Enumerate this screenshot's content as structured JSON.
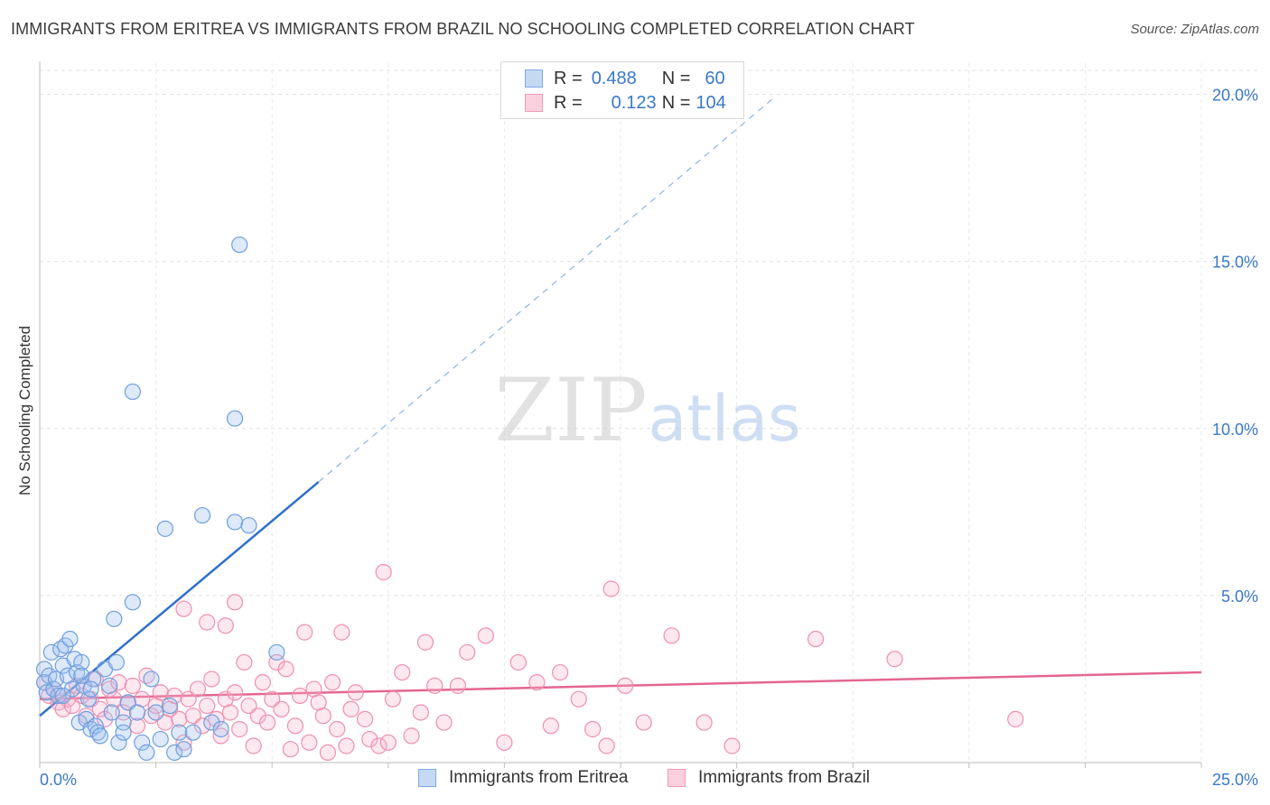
{
  "title": "IMMIGRANTS FROM ERITREA VS IMMIGRANTS FROM BRAZIL NO SCHOOLING COMPLETED CORRELATION CHART",
  "source": "Source: ZipAtlas.com",
  "watermark": {
    "zip": "ZIP",
    "atlas": "atlas"
  },
  "legend": {
    "rows": [
      {
        "r_label": "R =",
        "r_value": "0.488",
        "n_label": "N =",
        "n_value": "60",
        "color": "#7fa8e0",
        "fill": "#c5d9f3"
      },
      {
        "r_label": "R =",
        "r_value": "0.123",
        "n_label": "N =",
        "n_value": "104",
        "color": "#f29ab8",
        "fill": "#fad0de"
      }
    ]
  },
  "bottom_legend": {
    "eritrea": "Immigrants from Eritrea",
    "brazil": "Immigrants from Brazil"
  },
  "colors": {
    "blue": "#6f9fdd",
    "blue_line": "#2f6fcc",
    "pink": "#ee8fb0",
    "pink_line": "#e4668f",
    "tick_text": "#3a78c9",
    "grid": "#e0e0e0"
  },
  "chart_data": {
    "type": "scatter",
    "xlabel": "",
    "ylabel": "No Schooling Completed",
    "xlim": [
      0,
      25
    ],
    "ylim": [
      0,
      20.8
    ],
    "x_tick_labels": [
      {
        "value": 0,
        "label": "0.0%"
      },
      {
        "value": 25,
        "label": "25.0%"
      }
    ],
    "y_tick_labels": [
      {
        "value": 5,
        "label": "5.0%"
      },
      {
        "value": 10,
        "label": "10.0%"
      },
      {
        "value": 15,
        "label": "15.0%"
      },
      {
        "value": 20,
        "label": "20.0%"
      }
    ],
    "series": [
      {
        "name": "Immigrants from Eritrea",
        "R": 0.488,
        "N": 60,
        "trend": {
          "x0": 0,
          "y0": 1.4,
          "x_solid_end": 6.0,
          "y_solid_end": 8.4,
          "x1": 15.8,
          "y1": 19.9
        },
        "points": [
          [
            0.1,
            2.8
          ],
          [
            0.1,
            2.4
          ],
          [
            0.15,
            2.1
          ],
          [
            0.2,
            2.6
          ],
          [
            0.25,
            3.3
          ],
          [
            0.3,
            2.2
          ],
          [
            0.35,
            2.5
          ],
          [
            0.4,
            2.0
          ],
          [
            0.45,
            3.4
          ],
          [
            0.5,
            2.9
          ],
          [
            0.55,
            3.5
          ],
          [
            0.6,
            2.6
          ],
          [
            0.65,
            3.7
          ],
          [
            0.7,
            2.2
          ],
          [
            0.75,
            3.1
          ],
          [
            0.8,
            2.7
          ],
          [
            0.85,
            1.2
          ],
          [
            0.9,
            3.0
          ],
          [
            0.95,
            2.3
          ],
          [
            1.0,
            1.3
          ],
          [
            1.05,
            1.9
          ],
          [
            1.1,
            1.0
          ],
          [
            1.15,
            2.5
          ],
          [
            1.2,
            1.1
          ],
          [
            1.25,
            0.9
          ],
          [
            1.3,
            0.8
          ],
          [
            1.4,
            2.8
          ],
          [
            1.5,
            2.3
          ],
          [
            1.55,
            1.5
          ],
          [
            1.6,
            4.3
          ],
          [
            1.65,
            3.0
          ],
          [
            1.7,
            0.6
          ],
          [
            1.8,
            1.2
          ],
          [
            1.9,
            1.8
          ],
          [
            2.0,
            4.8
          ],
          [
            2.1,
            1.5
          ],
          [
            2.2,
            0.6
          ],
          [
            2.3,
            0.3
          ],
          [
            2.4,
            2.5
          ],
          [
            2.5,
            1.5
          ],
          [
            2.6,
            0.7
          ],
          [
            2.7,
            7.0
          ],
          [
            2.8,
            1.7
          ],
          [
            2.9,
            0.3
          ],
          [
            3.0,
            0.9
          ],
          [
            3.1,
            0.4
          ],
          [
            3.3,
            0.9
          ],
          [
            3.5,
            7.4
          ],
          [
            3.7,
            1.2
          ],
          [
            3.9,
            1.0
          ],
          [
            4.2,
            7.2
          ],
          [
            4.5,
            7.1
          ],
          [
            2.0,
            11.1
          ],
          [
            4.2,
            10.3
          ],
          [
            4.3,
            15.5
          ],
          [
            5.1,
            3.3
          ],
          [
            0.9,
            2.6
          ],
          [
            1.1,
            2.2
          ],
          [
            0.5,
            2.0
          ],
          [
            1.8,
            0.9
          ]
        ]
      },
      {
        "name": "Immigrants from Brazil",
        "R": 0.123,
        "N": 104,
        "trend": {
          "x0": 0,
          "y0": 1.9,
          "x1": 25,
          "y1": 2.7
        },
        "points": [
          [
            0.1,
            2.4
          ],
          [
            0.2,
            2.0
          ],
          [
            0.3,
            2.2
          ],
          [
            0.4,
            1.8
          ],
          [
            0.5,
            1.6
          ],
          [
            0.6,
            1.9
          ],
          [
            0.7,
            1.7
          ],
          [
            0.8,
            2.3
          ],
          [
            0.9,
            2.0
          ],
          [
            1.0,
            1.4
          ],
          [
            1.1,
            1.9
          ],
          [
            1.2,
            2.5
          ],
          [
            1.3,
            1.6
          ],
          [
            1.4,
            1.3
          ],
          [
            1.5,
            2.2
          ],
          [
            1.6,
            1.9
          ],
          [
            1.7,
            2.4
          ],
          [
            1.8,
            1.5
          ],
          [
            1.9,
            1.8
          ],
          [
            2.0,
            2.3
          ],
          [
            2.1,
            1.1
          ],
          [
            2.2,
            1.9
          ],
          [
            2.3,
            2.6
          ],
          [
            2.4,
            1.4
          ],
          [
            2.5,
            1.7
          ],
          [
            2.6,
            2.1
          ],
          [
            2.7,
            1.2
          ],
          [
            2.8,
            1.6
          ],
          [
            2.9,
            2.0
          ],
          [
            3.0,
            1.3
          ],
          [
            3.1,
            0.6
          ],
          [
            3.2,
            1.9
          ],
          [
            3.3,
            1.4
          ],
          [
            3.4,
            2.2
          ],
          [
            3.5,
            1.1
          ],
          [
            3.6,
            1.7
          ],
          [
            3.7,
            2.5
          ],
          [
            3.8,
            1.3
          ],
          [
            3.9,
            0.8
          ],
          [
            4.0,
            1.9
          ],
          [
            4.1,
            1.5
          ],
          [
            4.2,
            2.1
          ],
          [
            4.3,
            1.0
          ],
          [
            4.4,
            3.0
          ],
          [
            4.5,
            1.7
          ],
          [
            4.6,
            0.5
          ],
          [
            4.7,
            1.4
          ],
          [
            4.8,
            2.4
          ],
          [
            4.9,
            1.2
          ],
          [
            5.0,
            1.9
          ],
          [
            5.1,
            3.0
          ],
          [
            5.2,
            1.6
          ],
          [
            5.3,
            2.8
          ],
          [
            5.4,
            0.4
          ],
          [
            5.5,
            1.1
          ],
          [
            5.6,
            2.0
          ],
          [
            5.7,
            3.9
          ],
          [
            5.8,
            0.6
          ],
          [
            5.9,
            2.2
          ],
          [
            6.0,
            1.8
          ],
          [
            6.1,
            1.4
          ],
          [
            6.2,
            0.3
          ],
          [
            6.3,
            2.4
          ],
          [
            6.4,
            1.0
          ],
          [
            6.5,
            3.9
          ],
          [
            6.6,
            0.5
          ],
          [
            6.7,
            1.6
          ],
          [
            6.8,
            2.1
          ],
          [
            7.0,
            1.3
          ],
          [
            7.1,
            0.7
          ],
          [
            7.3,
            0.5
          ],
          [
            7.5,
            0.6
          ],
          [
            7.6,
            1.9
          ],
          [
            7.8,
            2.7
          ],
          [
            7.4,
            5.7
          ],
          [
            8.0,
            0.8
          ],
          [
            8.2,
            1.5
          ],
          [
            8.3,
            3.6
          ],
          [
            8.5,
            2.3
          ],
          [
            8.7,
            1.2
          ],
          [
            9.0,
            2.3
          ],
          [
            9.2,
            3.3
          ],
          [
            9.6,
            3.8
          ],
          [
            10.0,
            0.6
          ],
          [
            10.3,
            3.0
          ],
          [
            10.7,
            2.4
          ],
          [
            11.0,
            1.1
          ],
          [
            11.2,
            2.7
          ],
          [
            11.6,
            1.9
          ],
          [
            11.9,
            1.0
          ],
          [
            12.2,
            0.5
          ],
          [
            12.6,
            2.3
          ],
          [
            12.3,
            5.2
          ],
          [
            13.0,
            1.2
          ],
          [
            13.6,
            3.8
          ],
          [
            14.3,
            1.2
          ],
          [
            14.9,
            0.5
          ],
          [
            16.7,
            3.7
          ],
          [
            18.4,
            3.1
          ],
          [
            21.0,
            1.3
          ],
          [
            3.1,
            4.6
          ],
          [
            3.6,
            4.2
          ],
          [
            4.0,
            4.1
          ],
          [
            4.2,
            4.8
          ]
        ]
      }
    ]
  }
}
